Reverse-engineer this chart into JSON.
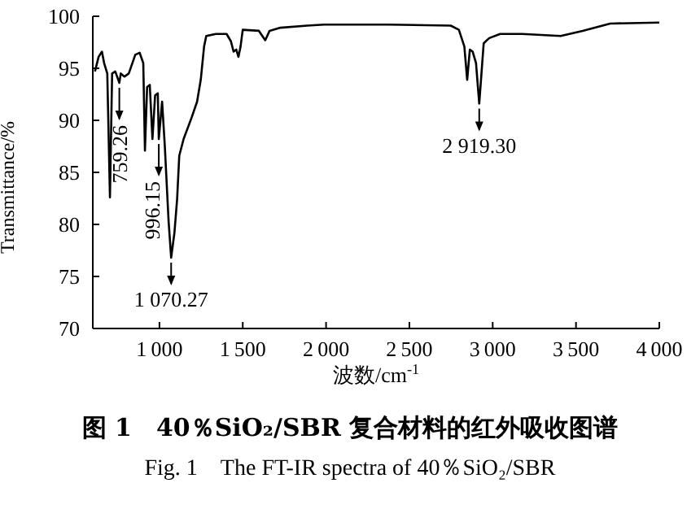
{
  "chart_data": {
    "type": "line",
    "title": "图 1　40％SiO₂/SBR 复合材料的红外吸收图谱",
    "subtitle": "Fig. 1　The FT-IR spectra of 40％SiO₂/SBR",
    "xlabel": "波数/cm$^{-1}$",
    "ylabel": "Transmittance/%",
    "xlim": [
      600,
      4000
    ],
    "xticks": [
      1000,
      1500,
      2000,
      2500,
      3000,
      3500,
      4000
    ],
    "ylim": [
      70,
      100
    ],
    "yticks": [
      70,
      75,
      80,
      85,
      90,
      95,
      100
    ],
    "grid": false,
    "legend": false,
    "series": [
      {
        "color": "#000000",
        "x": [
          613,
          635,
          655,
          668,
          687,
          703,
          716,
          735,
          759.26,
          768,
          790,
          816,
          855,
          881,
          903,
          913,
          926,
          942,
          958,
          974,
          990,
          996.15,
          1016,
          1032,
          1055,
          1070.27,
          1090,
          1106,
          1119,
          1145,
          1194,
          1226,
          1248,
          1268,
          1281,
          1339,
          1403,
          1429,
          1445,
          1461,
          1474,
          1487,
          1500,
          1597,
          1635,
          1661,
          1726,
          1887,
          1988,
          2371,
          2748,
          2797,
          2830,
          2847,
          2863,
          2880,
          2900,
          2919.3,
          2946,
          2979,
          3045,
          3177,
          3408,
          3540,
          3705,
          4000
        ],
        "values": [
          94.7,
          96.1,
          96.6,
          95.5,
          94.5,
          82.6,
          94.5,
          94.7,
          93.6,
          94.5,
          94.2,
          94.5,
          96.3,
          96.5,
          95.5,
          87.1,
          93.2,
          93.4,
          88.2,
          92.4,
          92.6,
          88.2,
          91.8,
          87.6,
          80.3,
          76.8,
          79.2,
          82.4,
          86.6,
          88.2,
          90.3,
          91.8,
          93.9,
          97.1,
          98.1,
          98.3,
          98.3,
          97.6,
          96.6,
          96.8,
          96.1,
          97.1,
          98.7,
          98.6,
          97.7,
          98.6,
          98.9,
          99.1,
          99.2,
          99.2,
          99.1,
          98.7,
          97.1,
          93.9,
          96.8,
          96.6,
          95.5,
          91.6,
          97.4,
          97.9,
          98.3,
          98.3,
          98.1,
          98.6,
          99.3,
          99.4
        ]
      }
    ],
    "annotations": [
      {
        "text": "759.26",
        "x": 759.26,
        "y": 93.6
      },
      {
        "text": "996.15",
        "x": 996.15,
        "y": 88.2
      },
      {
        "text": "1 070.27",
        "x": 1070.27,
        "y": 76.8
      },
      {
        "text": "2 919.30",
        "x": 2919.3,
        "y": 91.6
      }
    ]
  }
}
